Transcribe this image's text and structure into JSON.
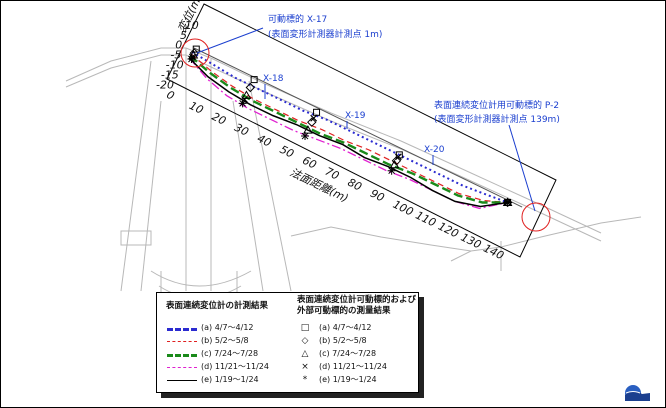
{
  "chart_data": {
    "type": "line",
    "ylabel": "変位(mm)",
    "xlabel": "法面距離(m)",
    "y_ticks": [
      "10",
      "5",
      "0",
      "-5",
      "-10",
      "-15",
      "-20"
    ],
    "x_ticks": [
      "0",
      "10",
      "20",
      "30",
      "40",
      "50",
      "60",
      "70",
      "80",
      "90",
      "100",
      "110",
      "120",
      "130",
      "140"
    ],
    "xlim": [
      0,
      145
    ],
    "ylim": [
      -22,
      12
    ],
    "annotations": {
      "x17_title": "可動標的 X-17",
      "x17_sub": "(表面変形計測器計測点 1m)",
      "p2_title": "表面連続変位計用可動標的 P-2",
      "p2_sub": "(表面変形計測器計測点 139m)",
      "x18": "X-18",
      "x19": "X-19",
      "x20": "X-20"
    },
    "line_series": [
      {
        "name": "(a) 4/7～4/12",
        "color": "#2b2bd0",
        "dash": "2,3",
        "width": 2,
        "x": [
          0,
          10,
          20,
          30,
          40,
          50,
          60,
          70,
          80,
          90,
          100,
          110,
          120,
          130,
          139
        ],
        "y": [
          -2,
          -3,
          -4,
          -4,
          -4,
          -4,
          -3,
          -3,
          -3,
          -3,
          -3,
          -3,
          -3,
          -2,
          -1
        ]
      },
      {
        "name": "(b) 5/2～5/8",
        "color": "#e02020",
        "dash": "6,4",
        "width": 1.2,
        "x": [
          0,
          10,
          20,
          30,
          40,
          50,
          60,
          70,
          80,
          90,
          100,
          110,
          120,
          130,
          139
        ],
        "y": [
          -3,
          -6,
          -8,
          -9,
          -9,
          -9,
          -8,
          -8,
          -7,
          -7,
          -7,
          -7,
          -7,
          -5,
          -1
        ]
      },
      {
        "name": "(c) 7/24～7/28",
        "color": "#1a8a1a",
        "dash": "9,4",
        "width": 2.4,
        "x": [
          0,
          10,
          20,
          30,
          40,
          50,
          60,
          70,
          80,
          90,
          100,
          110,
          120,
          130,
          139
        ],
        "y": [
          -4,
          -7,
          -9,
          -10,
          -10,
          -10,
          -10,
          -9,
          -9,
          -9,
          -8,
          -8,
          -8,
          -6,
          -1
        ]
      },
      {
        "name": "(d) 11/21～11/24",
        "color": "#e020d0",
        "dash": "9,3,2,3",
        "width": 1.3,
        "x": [
          0,
          10,
          20,
          30,
          40,
          50,
          60,
          70,
          80,
          90,
          100,
          110,
          120,
          130,
          139
        ],
        "y": [
          -5,
          -10,
          -13,
          -14,
          -14,
          -14,
          -13,
          -12,
          -12,
          -12,
          -11,
          -11,
          -11,
          -9,
          -1
        ]
      },
      {
        "name": "(e) 1/19～1/24",
        "color": "#000000",
        "dash": "",
        "width": 1.5,
        "x": [
          0,
          10,
          20,
          30,
          40,
          50,
          60,
          70,
          80,
          90,
          100,
          110,
          120,
          130,
          139
        ],
        "y": [
          -5,
          -9,
          -11,
          -12,
          -12,
          -11,
          -11,
          -10,
          -11,
          -10,
          -10,
          -11,
          -11,
          -8,
          -1
        ]
      }
    ],
    "marker_series": [
      {
        "name": "(a) 4/7～4/12",
        "symbol": "□",
        "shape": "square",
        "x": [
          1,
          27,
          55,
          92,
          139
        ],
        "y": [
          0,
          -1,
          -2,
          -3,
          -1
        ]
      },
      {
        "name": "(b) 5/2～5/8",
        "symbol": "◇",
        "shape": "diamond",
        "x": [
          1,
          27,
          55,
          92,
          139
        ],
        "y": [
          -2,
          -5,
          -7,
          -6,
          -1
        ]
      },
      {
        "name": "(c) 7/24～7/28",
        "symbol": "△",
        "shape": "triangle",
        "x": [
          1,
          27,
          55,
          92,
          139
        ],
        "y": [
          -3,
          -9,
          -11,
          -8,
          -1
        ]
      },
      {
        "name": "(d) 11/21～11/24",
        "symbol": "×",
        "shape": "cross",
        "x": [
          1,
          27,
          55,
          92,
          139
        ],
        "y": [
          -4,
          -11,
          -5,
          -4,
          -1
        ]
      },
      {
        "name": "(e) 1/19～1/24",
        "symbol": "*",
        "shape": "star",
        "x": [
          1,
          27,
          55,
          92,
          139
        ],
        "y": [
          -5,
          -13,
          -14,
          -11,
          -1
        ]
      }
    ]
  },
  "legend": {
    "left_title": "表面連続変位計の計測結果",
    "right_title_1": "表面連続変位計可動標的および",
    "right_title_2": "外部可動標的の測量結果",
    "rows": [
      {
        "label": "(a) 4/7～4/12",
        "color": "#2b2bd0",
        "symbol": "□"
      },
      {
        "label": "(b) 5/2～5/8",
        "color": "#e02020",
        "symbol": "◇"
      },
      {
        "label": "(c) 7/24～7/28",
        "color": "#1a8a1a",
        "symbol": "△"
      },
      {
        "label": "(d) 11/21～11/24",
        "color": "#e020d0",
        "symbol": "×"
      },
      {
        "label": "(e) 1/19～1/24",
        "color": "#000000",
        "symbol": "*"
      }
    ]
  }
}
